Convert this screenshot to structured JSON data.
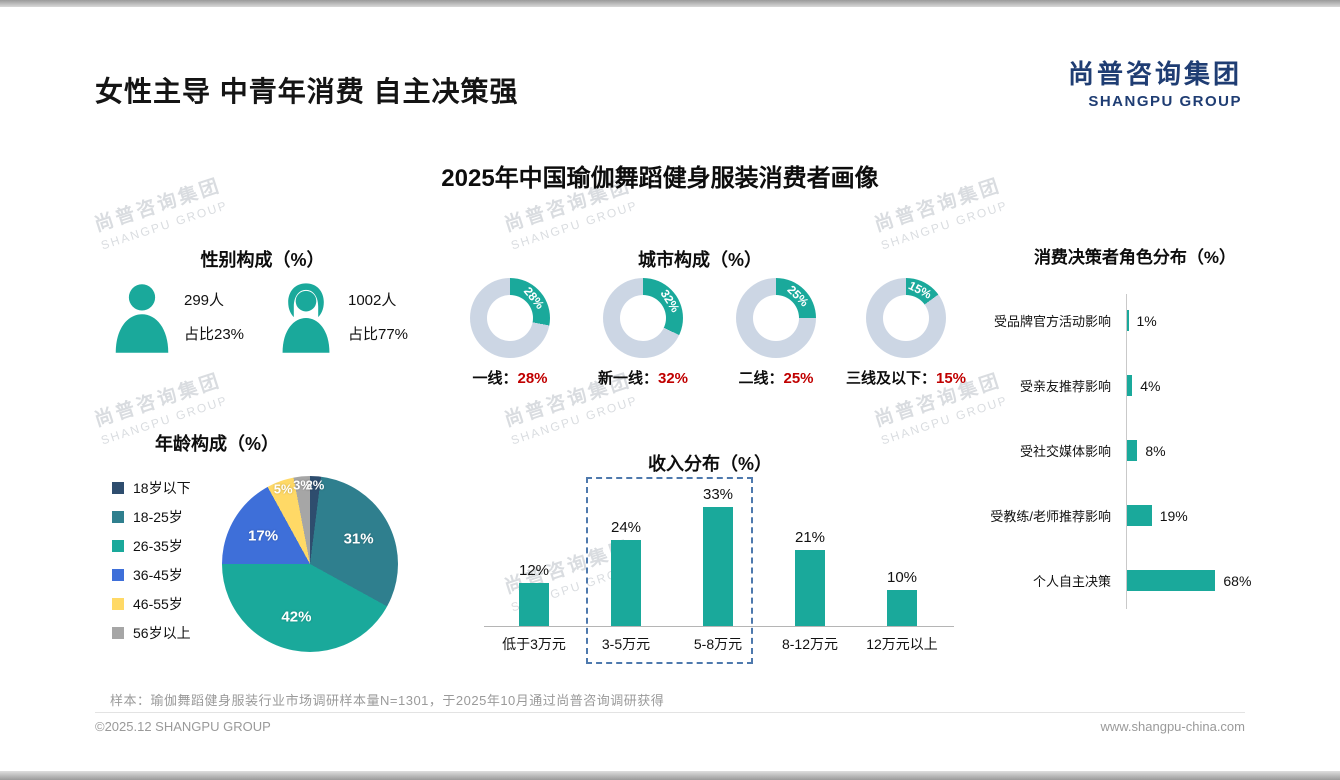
{
  "page": {
    "title": "女性主导 中青年消费 自主决策强",
    "chart_title": "2025年中国瑜伽舞蹈健身服装消费者画像",
    "logo": {
      "cn": "尚普咨询集团",
      "en": "SHANGPU GROUP"
    },
    "watermark": {
      "cn": "尚普咨询集团",
      "en": "SHANGPU GROUP"
    },
    "note": "样本：瑜伽舞蹈健身服装行业市场调研样本量N=1301，于2025年10月通过尚普咨询调研获得",
    "footer": {
      "left": "©2025.12 SHANGPU GROUP",
      "right": "www.shangpu-china.com"
    }
  },
  "colors": {
    "teal": "#1aa99b",
    "donut_rest": "#ccd6e4",
    "red": "#c00000",
    "navy": "#1f3d73"
  },
  "chart_data": [
    {
      "id": "gender",
      "type": "table",
      "title": "性别构成（%）",
      "rows": [
        {
          "label": "男",
          "count": "299人",
          "share": "占比23%",
          "value": 23
        },
        {
          "label": "女",
          "count": "1002人",
          "share": "占比77%",
          "value": 77
        }
      ]
    },
    {
      "id": "city",
      "type": "pie",
      "variant": "donut",
      "title": "城市构成（%）",
      "items": [
        {
          "label": "一线",
          "value": 28
        },
        {
          "label": "新一线",
          "value": 32
        },
        {
          "label": "二线",
          "value": 25
        },
        {
          "label": "三线及以下",
          "value": 15
        }
      ]
    },
    {
      "id": "age",
      "type": "pie",
      "title": "年龄构成（%）",
      "items": [
        {
          "label": "18岁以下",
          "value": 2,
          "color": "#2e4d6e"
        },
        {
          "label": "18-25岁",
          "value": 31,
          "color": "#2f7f8e"
        },
        {
          "label": "26-35岁",
          "value": 42,
          "color": "#1aa99b"
        },
        {
          "label": "36-45岁",
          "value": 17,
          "color": "#3e6fd9"
        },
        {
          "label": "46-55岁",
          "value": 5,
          "color": "#ffd966"
        },
        {
          "label": "56岁以上",
          "value": 3,
          "color": "#a6a6a6"
        }
      ]
    },
    {
      "id": "income",
      "type": "bar",
      "title": "收入分布（%）",
      "categories": [
        "低于3万元",
        "3-5万元",
        "5-8万元",
        "8-12万元",
        "12万元以上"
      ],
      "values": [
        12,
        24,
        33,
        21,
        10
      ],
      "highlighted_categories": [
        "3-5万元",
        "5-8万元"
      ],
      "ylim": [
        0,
        35
      ]
    },
    {
      "id": "decision",
      "type": "bar",
      "orientation": "horizontal",
      "title": "消费决策者角色分布（%）",
      "categories": [
        "受品牌官方活动影响",
        "受亲友推荐影响",
        "受社交媒体影响",
        "受教练/老师推荐影响",
        "个人自主决策"
      ],
      "values": [
        1,
        4,
        8,
        19,
        68
      ],
      "xlim": [
        0,
        70
      ]
    }
  ]
}
